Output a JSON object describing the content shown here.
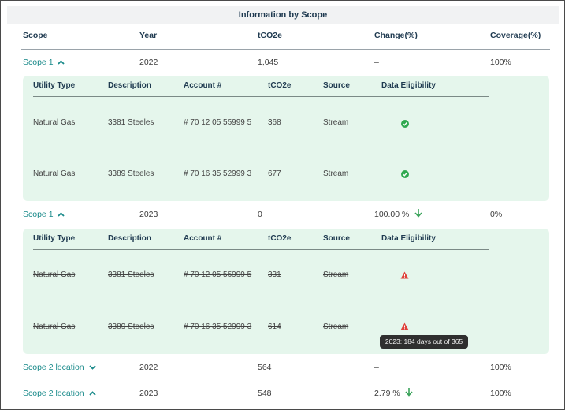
{
  "title": "Information by Scope",
  "columns": [
    "Scope",
    "Year",
    "tCO2e",
    "Change(%)",
    "Coverage(%)"
  ],
  "sub_columns": [
    "Utility Type",
    "Description",
    "Account #",
    "tCO2e",
    "Source",
    "Data Eligibility"
  ],
  "rows": [
    {
      "scope": "Scope 1",
      "expanded": true,
      "year": "2022",
      "tco2e": "1,045",
      "change": "–",
      "trend": "none",
      "coverage": "100%"
    },
    {
      "scope": "Scope 1",
      "expanded": true,
      "year": "2023",
      "tco2e": "0",
      "change": "100.00 %",
      "trend": "down",
      "coverage": "0%"
    },
    {
      "scope": "Scope 2 location",
      "expanded": false,
      "year": "2022",
      "tco2e": "564",
      "change": "–",
      "trend": "none",
      "coverage": "100%"
    },
    {
      "scope": "Scope 2 location",
      "expanded": true,
      "year": "2023",
      "tco2e": "548",
      "change": "2.79 %",
      "trend": "down",
      "coverage": "100%"
    }
  ],
  "panel_1": [
    {
      "utility_type": "Natural Gas",
      "description": "3381 Steeles",
      "account": "# 70 12 05 55999 5",
      "tco2e": "368",
      "source": "Stream",
      "eligibility": "eligible"
    },
    {
      "utility_type": "Natural Gas",
      "description": "3389 Steeles",
      "account": "# 70 16 35 52999 3",
      "tco2e": "677",
      "source": "Stream",
      "eligibility": "eligible"
    }
  ],
  "panel_2": [
    {
      "utility_type": "Natural Gas",
      "description": "3381 Steeles",
      "account": "# 70 12 05 55999 5",
      "tco2e": "331",
      "source": "Stream",
      "eligibility": "warning",
      "struck": true
    },
    {
      "utility_type": "Natural Gas",
      "description": "3389 Steeles",
      "account": "# 70 16 35 52999 3",
      "tco2e": "614",
      "source": "Stream",
      "eligibility": "warning",
      "struck": true
    }
  ],
  "tooltip": "2023: 184 days out of 365",
  "colors": {
    "link": "#1a8a8a",
    "panel": "#e5f6ec",
    "ok": "#2fa84f",
    "warning": "#e0413a",
    "arrow": "#3aa35a"
  }
}
